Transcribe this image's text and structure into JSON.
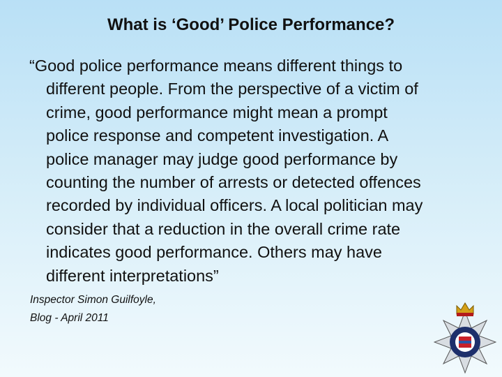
{
  "header": {
    "title": "What is ‘Good’ Police Performance?"
  },
  "quote": {
    "lines": [
      "“Good police performance means different things to",
      "different people. From the perspective of a victim of",
      "crime, good performance might mean a prompt",
      "police response and competent investigation. A",
      "police manager may judge good performance by",
      "counting the number of arrests or detected offences",
      "recorded by individual officers. A local politician may",
      "consider that a reduction in the overall crime rate",
      "indicates good performance. Others may have",
      "different interpretations”"
    ]
  },
  "attribution": {
    "lines": [
      "Inspector Simon Guilfoyle,",
      "Blog - April 2011"
    ]
  }
}
